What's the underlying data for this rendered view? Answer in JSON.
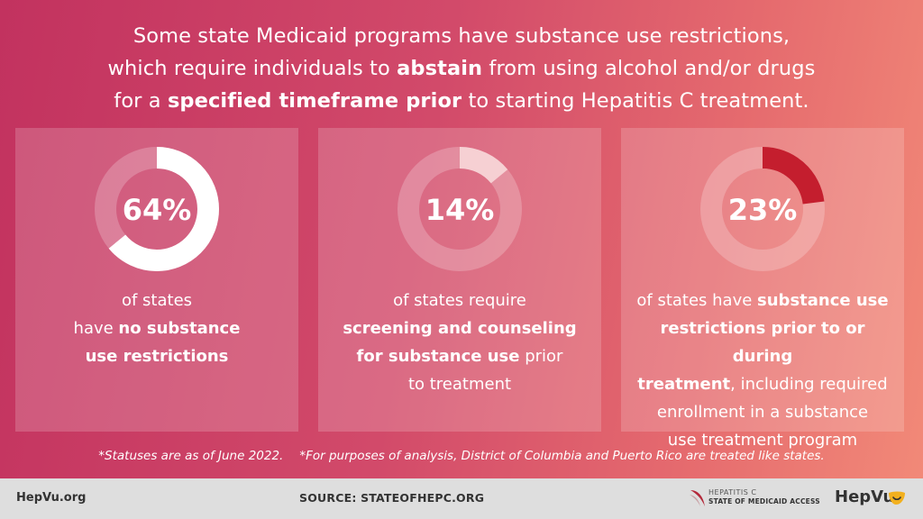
{
  "headline": {
    "line1": "Some state Medicaid programs have substance use restrictions,",
    "line2_pre": "which require individuals to ",
    "line2_bold": "abstain",
    "line2_post": " from using alcohol and/or drugs",
    "line3_pre": "for a ",
    "line3_bold": "specified timeframe prior",
    "line3_post": " to starting Hepatitis C treatment."
  },
  "cards": [
    {
      "percent": 64,
      "label": "64%",
      "ring_color": "#ffffff",
      "caption": [
        {
          "t": "of states",
          "b": false
        },
        {
          "br": true
        },
        {
          "t": "have ",
          "b": false
        },
        {
          "t": "no substance",
          "b": true
        },
        {
          "br": true
        },
        {
          "t": "use restrictions",
          "b": true
        }
      ]
    },
    {
      "percent": 14,
      "label": "14%",
      "ring_color": "#f6d0d3",
      "caption": [
        {
          "t": "of states require",
          "b": false
        },
        {
          "br": true
        },
        {
          "t": "screening and counseling",
          "b": true
        },
        {
          "br": true
        },
        {
          "t": "for substance use",
          "b": true
        },
        {
          "t": " prior",
          "b": false
        },
        {
          "br": true
        },
        {
          "t": "to treatment",
          "b": false
        }
      ]
    },
    {
      "percent": 23,
      "label": "23%",
      "ring_color": "#c41e2e",
      "caption": [
        {
          "t": "of states have ",
          "b": false
        },
        {
          "t": "substance use",
          "b": true
        },
        {
          "br": true
        },
        {
          "t": "restrictions prior to or during",
          "b": true
        },
        {
          "br": true
        },
        {
          "t": "treatment",
          "b": true
        },
        {
          "t": ", including required",
          "b": false
        },
        {
          "br": true
        },
        {
          "t": "enrollment in a substance",
          "b": false
        },
        {
          "br": true
        },
        {
          "t": "use treatment program",
          "b": false
        }
      ]
    }
  ],
  "footnotes": {
    "a": "*Statuses are as of June 2022.",
    "b": "*For purposes of analysis, District of Columbia and Puerto Rico are treated like states."
  },
  "footer": {
    "site": "HepVu.org",
    "source": "SOURCE: STATEOFHEPC.ORG",
    "brand_line1": "HEPATITIS C",
    "brand_line2": "STATE OF MEDICAID ACCESS",
    "hepvu_logo": "HepVu"
  }
}
